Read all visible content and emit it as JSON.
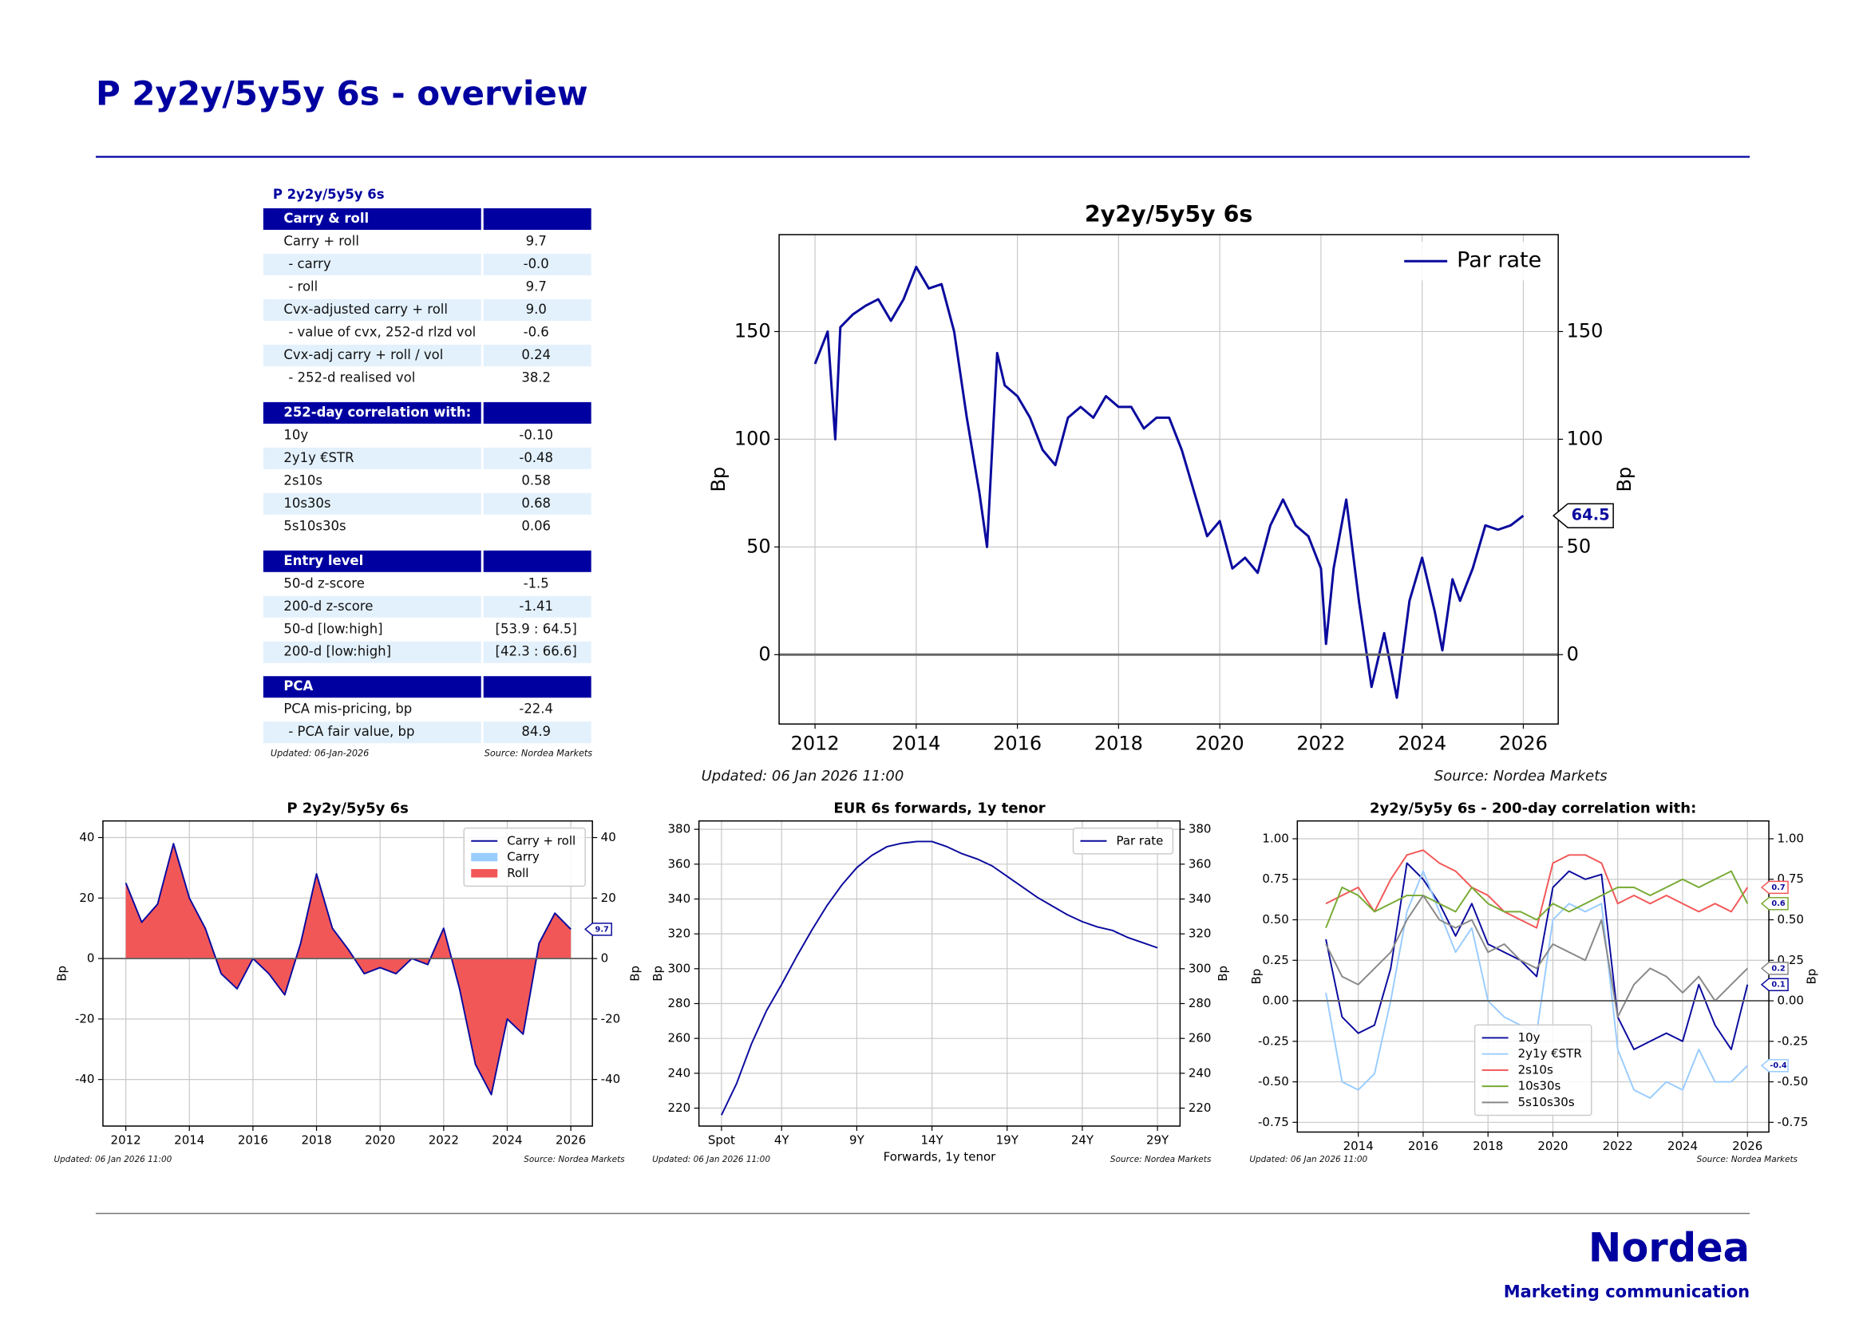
{
  "header": {
    "title": "P 2y2y/5y5y 6s - overview"
  },
  "table": {
    "title": "P 2y2y/5y5y 6s",
    "sections": [
      {
        "header": "Carry & roll",
        "rows": [
          [
            "Carry + roll",
            "9.7"
          ],
          [
            "- carry",
            "-0.0"
          ],
          [
            "- roll",
            "9.7"
          ],
          [
            "Cvx-adjusted carry + roll",
            "9.0"
          ],
          [
            "- value of cvx, 252-d rlzd vol",
            "-0.6"
          ],
          [
            "Cvx-adj carry + roll / vol",
            "0.24"
          ],
          [
            "- 252-d realised vol",
            "38.2"
          ]
        ]
      },
      {
        "header": "252-day correlation with:",
        "rows": [
          [
            "10y",
            "-0.10"
          ],
          [
            "2y1y €STR",
            "-0.48"
          ],
          [
            "2s10s",
            "0.58"
          ],
          [
            "10s30s",
            "0.68"
          ],
          [
            "5s10s30s",
            "0.06"
          ]
        ]
      },
      {
        "header": "Entry level",
        "rows": [
          [
            "50-d z-score",
            "-1.5"
          ],
          [
            "200-d z-score",
            "-1.41"
          ],
          [
            "50-d [low:high]",
            "[53.9 : 64.5]"
          ],
          [
            "200-d [low:high]",
            "[42.3 : 66.6]"
          ]
        ]
      },
      {
        "header": "PCA",
        "rows": [
          [
            "PCA mis-pricing, bp",
            "-22.4"
          ],
          [
            "- PCA fair value, bp",
            "84.9"
          ]
        ]
      }
    ],
    "updated": "Updated: 06-Jan-2026",
    "source": "Source: Nordea Markets"
  },
  "chart_data": [
    {
      "type": "line",
      "title": "2y2y/5y5y 6s",
      "ylabel": "Bp",
      "updated": "Updated: 06 Jan 2026 11:00",
      "source": "Source: Nordea Markets",
      "x": [
        2012.0,
        2012.25,
        2012.4,
        2012.5,
        2012.75,
        2013.0,
        2013.25,
        2013.5,
        2013.75,
        2014.0,
        2014.25,
        2014.5,
        2014.75,
        2015.0,
        2015.25,
        2015.4,
        2015.6,
        2015.75,
        2016.0,
        2016.25,
        2016.5,
        2016.75,
        2017.0,
        2017.25,
        2017.5,
        2017.75,
        2018.0,
        2018.25,
        2018.5,
        2018.75,
        2019.0,
        2019.25,
        2019.5,
        2019.75,
        2020.0,
        2020.25,
        2020.5,
        2020.75,
        2021.0,
        2021.25,
        2021.5,
        2021.75,
        2022.0,
        2022.1,
        2022.25,
        2022.5,
        2022.75,
        2023.0,
        2023.25,
        2023.5,
        2023.75,
        2024.0,
        2024.25,
        2024.4,
        2024.6,
        2024.75,
        2025.0,
        2025.25,
        2025.5,
        2025.75,
        2026.0
      ],
      "series": [
        {
          "name": "Par rate",
          "color": "#0a0a9e",
          "values": [
            135,
            150,
            100,
            152,
            158,
            162,
            165,
            155,
            165,
            180,
            170,
            172,
            150,
            110,
            75,
            50,
            140,
            125,
            120,
            110,
            95,
            88,
            110,
            115,
            110,
            120,
            115,
            115,
            105,
            110,
            110,
            95,
            75,
            55,
            62,
            40,
            45,
            38,
            60,
            72,
            60,
            55,
            40,
            5,
            40,
            72,
            25,
            -15,
            10,
            -20,
            25,
            45,
            20,
            2,
            35,
            25,
            40,
            60,
            58,
            60,
            64.5
          ]
        }
      ],
      "xlim": [
        2011.29,
        2026.69
      ],
      "xticks": [
        2012,
        2014,
        2016,
        2018,
        2020,
        2022,
        2024,
        2026
      ],
      "ylim": [
        -32.2,
        195
      ],
      "yticks": [
        0,
        50,
        100,
        150
      ],
      "grid": true,
      "zero_line": true,
      "legend": "upper right",
      "right_axis": true,
      "last_value_tag": true
    },
    {
      "type": "line",
      "title": "P 2y2y/5y5y 6s",
      "ylabel": "Bp",
      "updated": "Updated: 06 Jan 2026 11:00",
      "source": "Source: Nordea Markets",
      "x": [
        2012,
        2012.5,
        2013,
        2013.5,
        2014,
        2014.5,
        2015,
        2015.5,
        2016,
        2016.5,
        2017,
        2017.5,
        2018,
        2018.5,
        2019,
        2019.5,
        2020,
        2020.5,
        2021,
        2021.5,
        2022,
        2022.5,
        2023,
        2023.5,
        2024,
        2024.5,
        2025,
        2025.5,
        2026
      ],
      "series": [
        {
          "name": "Carry + roll",
          "color": "#0a0a9e",
          "values": [
            25,
            12,
            18,
            38,
            20,
            10,
            -5,
            -10,
            0,
            -5,
            -12,
            5,
            28,
            10,
            3,
            -5,
            -3,
            -5,
            0,
            -2,
            10,
            -10,
            -35,
            -45,
            -20,
            -25,
            5,
            15,
            9.7
          ]
        },
        {
          "name": "Carry",
          "color": "#99ccff",
          "fill": true,
          "values": [
            0,
            0,
            0,
            0,
            0,
            0,
            0,
            0,
            0,
            0,
            0,
            0,
            0,
            0,
            0,
            0,
            0,
            0,
            0,
            0,
            0,
            0,
            0,
            0,
            0,
            0,
            0,
            0,
            0
          ]
        },
        {
          "name": "Roll",
          "color": "#f25757",
          "fill": true,
          "values": [
            25,
            12,
            18,
            38,
            20,
            10,
            -5,
            -10,
            0,
            -5,
            -12,
            5,
            28,
            10,
            3,
            -5,
            -3,
            -5,
            0,
            -2,
            10,
            -10,
            -35,
            -45,
            -20,
            -25,
            5,
            15,
            9.7
          ]
        }
      ],
      "xlim": [
        2011.28,
        2026.68
      ],
      "xticks": [
        2012,
        2014,
        2016,
        2018,
        2020,
        2022,
        2024,
        2026
      ],
      "ylim": [
        -55.4,
        45.5
      ],
      "yticks": [
        -40,
        -20,
        0,
        20,
        40
      ],
      "grid": true,
      "zero_line": true,
      "legend": "upper right",
      "right_axis": true,
      "last_value_tag": true
    },
    {
      "type": "line",
      "title": "EUR 6s forwards, 1y tenor",
      "ylabel": "Bp",
      "xlabel": "Forwards, 1y tenor",
      "updated": "Updated: 06 Jan 2026 11:00",
      "source": "Source: Nordea Markets",
      "categories": [
        "Spot",
        null,
        null,
        null,
        "4Y",
        null,
        null,
        null,
        null,
        "9Y",
        null,
        null,
        null,
        null,
        "14Y",
        null,
        null,
        null,
        null,
        "19Y",
        null,
        null,
        null,
        null,
        "24Y",
        null,
        null,
        null,
        null,
        "29Y"
      ],
      "series": [
        {
          "name": "Par rate",
          "color": "#0a0a9e",
          "values": [
            216,
            234,
            257,
            276,
            291,
            307,
            322,
            336,
            348,
            358,
            365,
            370,
            372,
            373,
            373,
            370,
            366,
            363,
            359,
            353,
            347,
            341,
            336,
            331,
            327,
            324,
            322,
            318,
            315,
            312
          ]
        }
      ],
      "ylim": [
        209.7,
        384.8
      ],
      "yticks": [
        220,
        240,
        260,
        280,
        300,
        320,
        340,
        360,
        380
      ],
      "grid": true,
      "legend": "upper right",
      "right_axis": true
    },
    {
      "type": "line",
      "title": "2y2y/5y5y 6s - 200-day correlation with:",
      "ylabel": "Bp",
      "updated": "Updated: 06 Jan 2026 11:00",
      "source": "Source: Nordea Markets",
      "x": [
        2013,
        2013.5,
        2014,
        2014.5,
        2015,
        2015.5,
        2016,
        2016.5,
        2017,
        2017.5,
        2018,
        2018.5,
        2019,
        2019.5,
        2020,
        2020.5,
        2021,
        2021.5,
        2022,
        2022.5,
        2023,
        2023.5,
        2024,
        2024.5,
        2025,
        2025.5,
        2026
      ],
      "series": [
        {
          "name": "10y",
          "color": "#0a0a9e",
          "values": [
            0.38,
            -0.1,
            -0.2,
            -0.15,
            0.2,
            0.85,
            0.75,
            0.6,
            0.4,
            0.6,
            0.35,
            0.3,
            0.25,
            0.15,
            0.7,
            0.8,
            0.75,
            0.78,
            -0.1,
            -0.3,
            -0.25,
            -0.2,
            -0.25,
            0.1,
            -0.15,
            -0.3,
            0.1
          ]
        },
        {
          "name": "2y1y €STR",
          "color": "#99ccff",
          "values": [
            0.05,
            -0.5,
            -0.55,
            -0.45,
            0,
            0.55,
            0.8,
            0.55,
            0.3,
            0.45,
            0.0,
            -0.1,
            -0.15,
            -0.2,
            0.5,
            0.6,
            0.55,
            0.6,
            -0.3,
            -0.55,
            -0.6,
            -0.5,
            -0.55,
            -0.3,
            -0.5,
            -0.5,
            -0.4
          ]
        },
        {
          "name": "2s10s",
          "color": "#f25757",
          "values": [
            0.6,
            0.65,
            0.7,
            0.55,
            0.75,
            0.9,
            0.93,
            0.85,
            0.8,
            0.7,
            0.65,
            0.55,
            0.5,
            0.45,
            0.85,
            0.9,
            0.9,
            0.85,
            0.6,
            0.65,
            0.6,
            0.65,
            0.6,
            0.55,
            0.6,
            0.55,
            0.7
          ]
        },
        {
          "name": "10s30s",
          "color": "#77aa33",
          "values": [
            0.45,
            0.7,
            0.65,
            0.55,
            0.6,
            0.65,
            0.65,
            0.6,
            0.55,
            0.7,
            0.6,
            0.55,
            0.55,
            0.5,
            0.6,
            0.55,
            0.6,
            0.65,
            0.7,
            0.7,
            0.65,
            0.7,
            0.75,
            0.7,
            0.75,
            0.8,
            0.6
          ]
        },
        {
          "name": "5s10s30s",
          "color": "#888888",
          "values": [
            0.35,
            0.15,
            0.1,
            0.2,
            0.3,
            0.5,
            0.65,
            0.5,
            0.45,
            0.5,
            0.3,
            0.35,
            0.25,
            0.2,
            0.35,
            0.3,
            0.25,
            0.5,
            -0.1,
            0.1,
            0.2,
            0.15,
            0.05,
            0.15,
            0.0,
            0.1,
            0.2
          ]
        }
      ],
      "xlim": [
        2012.12,
        2026.66
      ],
      "xticks": [
        2014,
        2016,
        2018,
        2020,
        2022,
        2024,
        2026
      ],
      "ylim": [
        -0.81,
        1.11
      ],
      "yticks": [
        -0.75,
        {
          "value": -0.5,
          "label": "-0.50"
        },
        -0.25,
        {
          "value": 0,
          "label": "0.00"
        },
        0.25,
        {
          "value": 0.5,
          "label": "0.50"
        },
        0.75,
        {
          "value": 1,
          "label": "1.00"
        }
      ],
      "grid": true,
      "zero_line": true,
      "legend": "lower center",
      "right_axis": true,
      "last_value_tag": true
    }
  ],
  "footer": {
    "logo": "Nordea",
    "note": "Marketing communication"
  }
}
